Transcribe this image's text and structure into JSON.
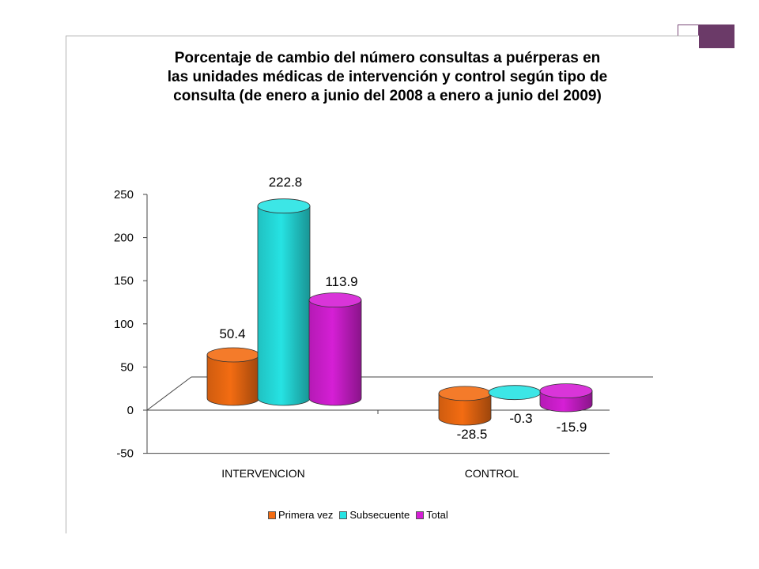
{
  "accent_color": "#6b3a68",
  "title_lines": [
    "Porcentaje de cambio del número consultas a puérperas en",
    "las unidades médicas de intervención  y control  según tipo de",
    "consulta (de enero a  junio del 2008 a enero a junio del 2009)"
  ],
  "chart_data": {
    "type": "bar",
    "style": "3d-cylinder",
    "title": "Porcentaje de cambio del número consultas a puérperas en las unidades médicas de intervención  y control  según tipo de consulta (de enero a  junio del 2008 a enero a junio del 2009)",
    "categories": [
      "INTERVENCION",
      "CONTROL"
    ],
    "series": [
      {
        "name": "Primera vez",
        "color": "#f36c12",
        "values": [
          50.4,
          -28.5
        ]
      },
      {
        "name": "Subsecuente",
        "color": "#26e3e3",
        "values": [
          222.8,
          -0.3
        ]
      },
      {
        "name": "Total",
        "color": "#d51fd5",
        "values": [
          113.9,
          -15.9
        ]
      }
    ],
    "data_labels": [
      [
        "50.4",
        "-28.5"
      ],
      [
        "222.8",
        "-0.3"
      ],
      [
        "113.9",
        "-15.9"
      ]
    ],
    "ylim": [
      -50,
      250
    ],
    "yticks": [
      250,
      200,
      150,
      100,
      50,
      0,
      -50
    ],
    "ytick_labels": [
      "250",
      "200",
      "150",
      "100",
      "50",
      "0",
      "-50"
    ],
    "grid": false,
    "legend_position": "bottom"
  }
}
